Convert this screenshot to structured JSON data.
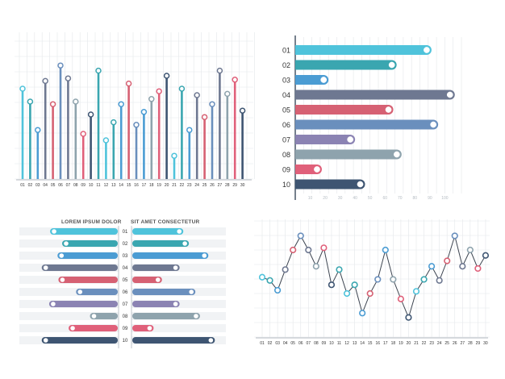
{
  "palette": {
    "cyan": "#4fc3db",
    "teal": "#3aa6b0",
    "blue": "#4b9cd3",
    "slate": "#6e7891",
    "red": "#d66173",
    "steel": "#6a8fbd",
    "purple": "#8b83b3",
    "gray": "#8ea3ad",
    "pink": "#e0607a",
    "navy": "#3e5572",
    "grid": "#e4e7ea"
  },
  "chart_data": [
    {
      "type": "lollipop",
      "categories": [
        "01",
        "02",
        "03",
        "04",
        "05",
        "06",
        "07",
        "08",
        "09",
        "10",
        "11",
        "12",
        "13",
        "14",
        "15",
        "16",
        "17",
        "18",
        "19",
        "20",
        "21",
        "22",
        "23",
        "24",
        "25",
        "26",
        "27",
        "28",
        "29",
        "30"
      ],
      "values": [
        70,
        60,
        38,
        76,
        58,
        88,
        78,
        60,
        35,
        50,
        84,
        30,
        44,
        58,
        74,
        42,
        52,
        62,
        68,
        80,
        18,
        70,
        38,
        65,
        48,
        58,
        84,
        66,
        77,
        53
      ],
      "colors": [
        "cyan",
        "teal",
        "blue",
        "slate",
        "red",
        "steel",
        "slate",
        "gray",
        "pink",
        "navy",
        "teal",
        "cyan",
        "teal",
        "blue",
        "red",
        "steel",
        "blue",
        "gray",
        "pink",
        "navy",
        "cyan",
        "teal",
        "blue",
        "slate",
        "red",
        "steel",
        "slate",
        "gray",
        "pink",
        "navy"
      ],
      "ylim": [
        0,
        100
      ],
      "grid": true
    },
    {
      "type": "bar",
      "orientation": "horizontal",
      "categories": [
        "01",
        "02",
        "03",
        "04",
        "05",
        "06",
        "07",
        "08",
        "09",
        "10"
      ],
      "values": [
        82,
        61,
        20,
        96,
        59,
        86,
        36,
        64,
        16,
        42
      ],
      "colors": [
        "cyan",
        "teal",
        "blue",
        "slate",
        "red",
        "steel",
        "purple",
        "gray",
        "pink",
        "navy"
      ],
      "x_ticks": [
        "10",
        "20",
        "30",
        "40",
        "50",
        "60",
        "70",
        "80",
        "90",
        "100"
      ],
      "xlim": [
        0,
        100
      ],
      "grid": true
    },
    {
      "type": "bar",
      "orientation": "diverging",
      "left_header": "LOREM IPSUM DOLOR",
      "right_header": "SIT AMET CONSECTETUR",
      "categories": [
        "01",
        "02",
        "03",
        "04",
        "05",
        "06",
        "07",
        "08",
        "09",
        "10"
      ],
      "left_values": [
        73,
        60,
        65,
        82,
        64,
        45,
        74,
        30,
        53,
        82
      ],
      "right_values": [
        55,
        61,
        82,
        51,
        32,
        68,
        51,
        73,
        23,
        89
      ],
      "colors": [
        "cyan",
        "teal",
        "blue",
        "slate",
        "red",
        "steel",
        "purple",
        "gray",
        "pink",
        "navy"
      ]
    },
    {
      "type": "line",
      "x": [
        "01",
        "02",
        "03",
        "04",
        "05",
        "06",
        "07",
        "08",
        "09",
        "10",
        "11",
        "12",
        "13",
        "14",
        "15",
        "16",
        "17",
        "18",
        "19",
        "20",
        "21",
        "22",
        "23",
        "24",
        "25",
        "26",
        "27",
        "28",
        "29",
        "30"
      ],
      "values": [
        55,
        52,
        43,
        62,
        80,
        93,
        80,
        65,
        82,
        48,
        62,
        40,
        48,
        22,
        40,
        53,
        80,
        53,
        35,
        18,
        42,
        53,
        65,
        52,
        70,
        93,
        65,
        80,
        63,
        75
      ],
      "colors": [
        "cyan",
        "teal",
        "blue",
        "slate",
        "red",
        "steel",
        "slate",
        "gray",
        "pink",
        "navy",
        "teal",
        "cyan",
        "teal",
        "blue",
        "red",
        "steel",
        "blue",
        "gray",
        "pink",
        "navy",
        "cyan",
        "teal",
        "blue",
        "slate",
        "red",
        "steel",
        "slate",
        "gray",
        "pink",
        "navy"
      ],
      "ylim": [
        0,
        100
      ],
      "grid": true
    }
  ]
}
